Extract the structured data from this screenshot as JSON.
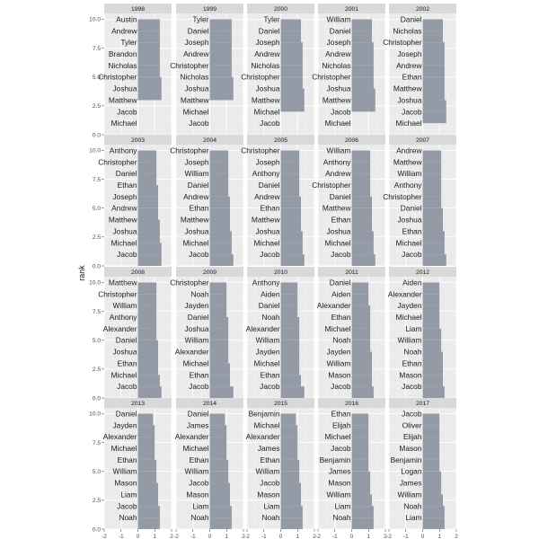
{
  "chart_data": {
    "type": "bar",
    "facet_by": "year",
    "ylabel": "rank",
    "y_ticks": [
      "0.0",
      "2.5",
      "5.0",
      "7.5",
      "10.0"
    ],
    "x_ticks": [
      "-2",
      "-1",
      "0",
      "1",
      "2"
    ],
    "xlim": [
      -2,
      2
    ],
    "ylim": [
      0,
      10.5
    ],
    "grid": true,
    "bar_color": "#8f96a1",
    "panels": [
      {
        "year": "1998",
        "labels": [
          "Michael",
          "Jacob",
          "Matthew",
          "Joshua",
          "Christopher",
          "Nicholas",
          "Brandon",
          "Tyler",
          "Andrew",
          "Austin"
        ],
        "values": [
          0,
          0,
          0,
          1.4,
          1.4,
          1.3,
          1.3,
          1.3,
          1.3,
          1.3
        ]
      },
      {
        "year": "1999",
        "labels": [
          "Jacob",
          "Michael",
          "Matthew",
          "Joshua",
          "Nicholas",
          "Christopher",
          "Andrew",
          "Joseph",
          "Daniel",
          "Tyler"
        ],
        "values": [
          0,
          0,
          0,
          1.4,
          1.4,
          1.3,
          1.3,
          1.3,
          1.3,
          1.3
        ]
      },
      {
        "year": "2000",
        "labels": [
          "Jacob",
          "Michael",
          "Matthew",
          "Joshua",
          "Christopher",
          "Nicholas",
          "Andrew",
          "Joseph",
          "Daniel",
          "Tyler"
        ],
        "values": [
          0,
          0,
          1.4,
          1.4,
          1.3,
          1.3,
          1.3,
          1.3,
          1.2,
          1.2
        ]
      },
      {
        "year": "2001",
        "labels": [
          "Michael",
          "Jacob",
          "Matthew",
          "Joshua",
          "Christopher",
          "Nicholas",
          "Andrew",
          "Joseph",
          "Daniel",
          "William"
        ],
        "values": [
          0,
          0,
          1.4,
          1.4,
          1.3,
          1.3,
          1.3,
          1.3,
          1.2,
          1.2
        ]
      },
      {
        "year": "2002",
        "labels": [
          "Michael",
          "Jacob",
          "Joshua",
          "Matthew",
          "Ethan",
          "Andrew",
          "Joseph",
          "Christopher",
          "Nicholas",
          "Daniel"
        ],
        "values": [
          0,
          1.4,
          1.4,
          1.3,
          1.3,
          1.3,
          1.3,
          1.3,
          1.2,
          1.2
        ]
      },
      {
        "year": "2003",
        "labels": [
          "Jacob",
          "Michael",
          "Joshua",
          "Matthew",
          "Andrew",
          "Joseph",
          "Ethan",
          "Daniel",
          "Christopher",
          "Anthony"
        ],
        "values": [
          1.4,
          1.4,
          1.3,
          1.3,
          1.2,
          1.2,
          1.2,
          1.1,
          1.1,
          1.1
        ]
      },
      {
        "year": "2004",
        "labels": [
          "Jacob",
          "Michael",
          "Joshua",
          "Matthew",
          "Ethan",
          "Andrew",
          "Daniel",
          "William",
          "Joseph",
          "Christopher"
        ],
        "values": [
          1.4,
          1.3,
          1.3,
          1.2,
          1.2,
          1.2,
          1.1,
          1.1,
          1.1,
          1.1
        ]
      },
      {
        "year": "2005",
        "labels": [
          "Jacob",
          "Michael",
          "Joshua",
          "Matthew",
          "Ethan",
          "Andrew",
          "Daniel",
          "Anthony",
          "Joseph",
          "Christopher"
        ],
        "values": [
          1.4,
          1.3,
          1.3,
          1.2,
          1.2,
          1.2,
          1.1,
          1.1,
          1.1,
          1.1
        ]
      },
      {
        "year": "2006",
        "labels": [
          "Jacob",
          "Michael",
          "Joshua",
          "Ethan",
          "Matthew",
          "Daniel",
          "Christopher",
          "Andrew",
          "Anthony",
          "William"
        ],
        "values": [
          1.4,
          1.3,
          1.3,
          1.2,
          1.2,
          1.2,
          1.1,
          1.1,
          1.1,
          1.1
        ]
      },
      {
        "year": "2007",
        "labels": [
          "Jacob",
          "Michael",
          "Ethan",
          "Joshua",
          "Daniel",
          "Christopher",
          "Anthony",
          "William",
          "Matthew",
          "Andrew"
        ],
        "values": [
          1.4,
          1.3,
          1.3,
          1.2,
          1.2,
          1.1,
          1.1,
          1.1,
          1.1,
          1.1
        ]
      },
      {
        "year": "2008",
        "labels": [
          "Jacob",
          "Michael",
          "Ethan",
          "Joshua",
          "Daniel",
          "Alexander",
          "Anthony",
          "William",
          "Christopher",
          "Matthew"
        ],
        "values": [
          1.4,
          1.3,
          1.2,
          1.2,
          1.2,
          1.1,
          1.1,
          1.1,
          1.1,
          1.1
        ]
      },
      {
        "year": "2009",
        "labels": [
          "Jacob",
          "Ethan",
          "Michael",
          "Alexander",
          "William",
          "Joshua",
          "Daniel",
          "Jayden",
          "Noah",
          "Christopher"
        ],
        "values": [
          1.4,
          1.2,
          1.2,
          1.1,
          1.1,
          1.1,
          1.1,
          1.0,
          1.0,
          1.0
        ]
      },
      {
        "year": "2010",
        "labels": [
          "Jacob",
          "Ethan",
          "Michael",
          "Jayden",
          "William",
          "Alexander",
          "Noah",
          "Daniel",
          "Aiden",
          "Anthony"
        ],
        "values": [
          1.4,
          1.2,
          1.1,
          1.1,
          1.1,
          1.1,
          1.1,
          1.0,
          1.0,
          1.0
        ]
      },
      {
        "year": "2011",
        "labels": [
          "Jacob",
          "Mason",
          "William",
          "Jayden",
          "Noah",
          "Michael",
          "Ethan",
          "Alexander",
          "Aiden",
          "Daniel"
        ],
        "values": [
          1.3,
          1.2,
          1.2,
          1.2,
          1.1,
          1.1,
          1.1,
          1.1,
          1.0,
          1.0
        ]
      },
      {
        "year": "2012",
        "labels": [
          "Jacob",
          "Mason",
          "Ethan",
          "Noah",
          "William",
          "Liam",
          "Michael",
          "Jayden",
          "Alexander",
          "Aiden"
        ],
        "values": [
          1.3,
          1.2,
          1.2,
          1.2,
          1.1,
          1.1,
          1.0,
          1.0,
          1.0,
          1.0
        ]
      },
      {
        "year": "2013",
        "labels": [
          "Noah",
          "Jacob",
          "Liam",
          "Mason",
          "William",
          "Ethan",
          "Michael",
          "Alexander",
          "Jayden",
          "Daniel"
        ],
        "values": [
          1.3,
          1.3,
          1.2,
          1.2,
          1.1,
          1.1,
          1.0,
          1.0,
          1.0,
          0.9
        ]
      },
      {
        "year": "2014",
        "labels": [
          "Noah",
          "Liam",
          "Mason",
          "Jacob",
          "William",
          "Ethan",
          "Michael",
          "Alexander",
          "James",
          "Daniel"
        ],
        "values": [
          1.3,
          1.3,
          1.2,
          1.2,
          1.1,
          1.1,
          1.0,
          1.0,
          1.0,
          0.9
        ]
      },
      {
        "year": "2015",
        "labels": [
          "Noah",
          "Liam",
          "Mason",
          "Jacob",
          "William",
          "Ethan",
          "James",
          "Alexander",
          "Michael",
          "Benjamin"
        ],
        "values": [
          1.3,
          1.3,
          1.2,
          1.2,
          1.1,
          1.1,
          1.0,
          1.0,
          1.0,
          0.9
        ]
      },
      {
        "year": "2016",
        "labels": [
          "Noah",
          "Liam",
          "William",
          "Mason",
          "James",
          "Benjamin",
          "Jacob",
          "Michael",
          "Elijah",
          "Ethan"
        ],
        "values": [
          1.3,
          1.3,
          1.2,
          1.1,
          1.1,
          1.0,
          1.0,
          1.0,
          1.0,
          1.0
        ]
      },
      {
        "year": "2017",
        "labels": [
          "Liam",
          "Noah",
          "William",
          "James",
          "Logan",
          "Benjamin",
          "Mason",
          "Elijah",
          "Oliver",
          "Jacob"
        ],
        "values": [
          1.3,
          1.3,
          1.2,
          1.1,
          1.1,
          1.0,
          1.0,
          1.0,
          1.0,
          1.0
        ]
      }
    ]
  }
}
